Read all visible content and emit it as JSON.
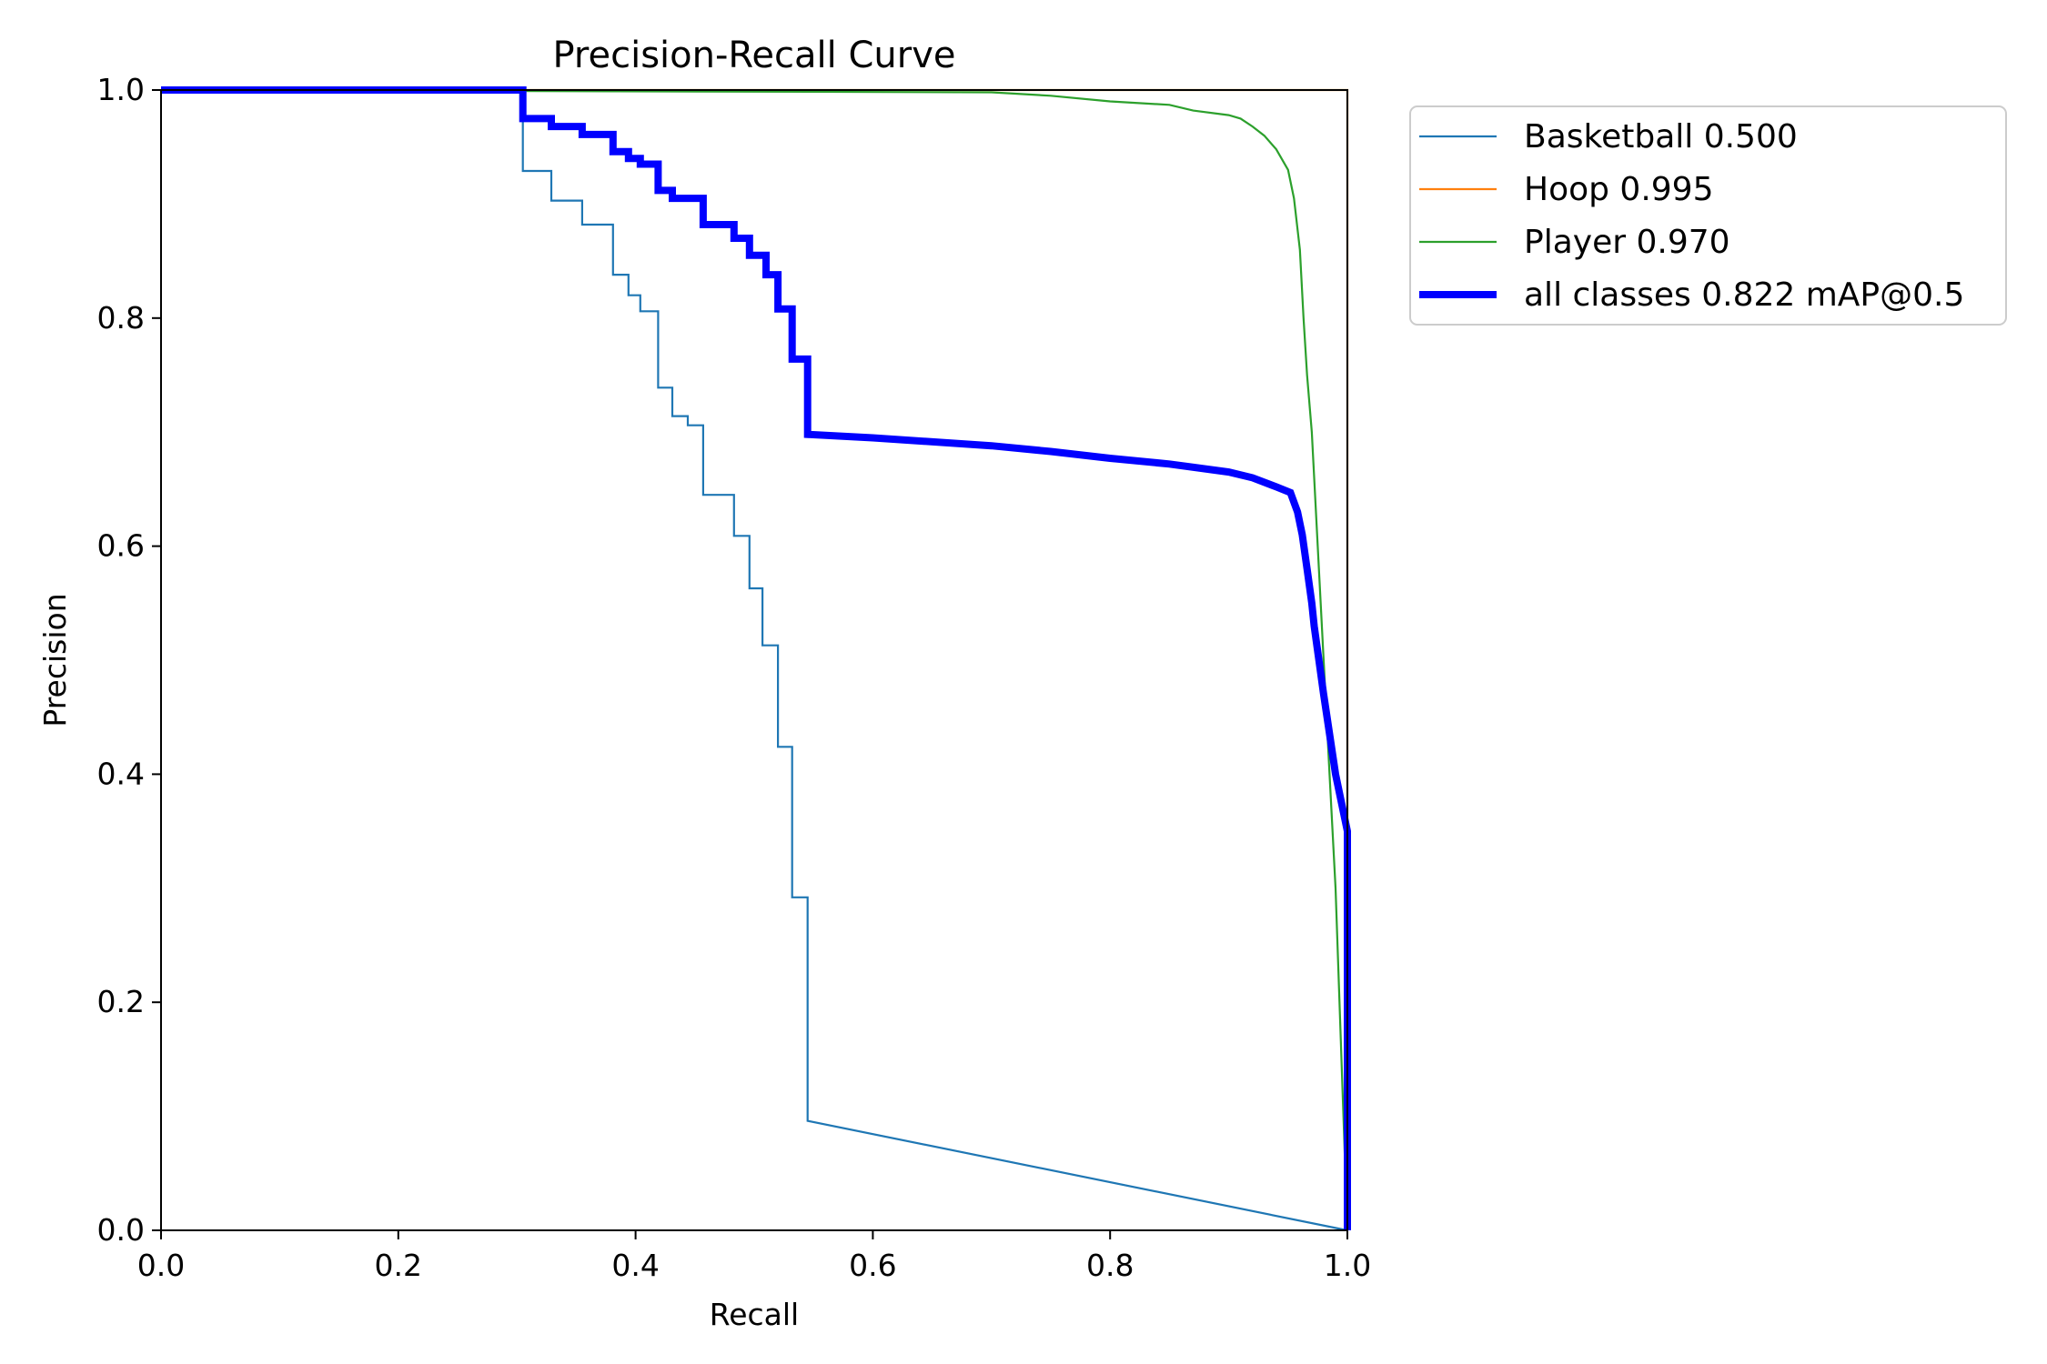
{
  "chart_data": {
    "type": "line",
    "title": "Precision-Recall Curve",
    "xlabel": "Recall",
    "ylabel": "Precision",
    "xlim": [
      0,
      1
    ],
    "ylim": [
      0,
      1
    ],
    "xticks": [
      "0.0",
      "0.2",
      "0.4",
      "0.6",
      "0.8",
      "1.0"
    ],
    "yticks": [
      "0.0",
      "0.2",
      "0.4",
      "0.6",
      "0.8",
      "1.0"
    ],
    "grid": false,
    "legend_position": "outside upper right",
    "series": [
      {
        "name": "Basketball 0.500",
        "color": "#1f77b4",
        "width": "thin",
        "x": [
          0.0,
          0.305,
          0.305,
          0.329,
          0.329,
          0.355,
          0.355,
          0.381,
          0.381,
          0.394,
          0.394,
          0.404,
          0.404,
          0.419,
          0.419,
          0.431,
          0.431,
          0.444,
          0.444,
          0.457,
          0.457,
          0.483,
          0.483,
          0.496,
          0.496,
          0.507,
          0.507,
          0.52,
          0.52,
          0.532,
          0.532,
          0.545,
          0.545,
          1.0
        ],
        "y": [
          1.0,
          1.0,
          0.929,
          0.929,
          0.903,
          0.903,
          0.882,
          0.882,
          0.838,
          0.838,
          0.82,
          0.82,
          0.806,
          0.806,
          0.739,
          0.739,
          0.714,
          0.714,
          0.706,
          0.706,
          0.645,
          0.645,
          0.609,
          0.609,
          0.563,
          0.563,
          0.513,
          0.513,
          0.424,
          0.424,
          0.292,
          0.292,
          0.096,
          0.0
        ]
      },
      {
        "name": "Hoop 0.995",
        "color": "#ff7f0e",
        "width": "thin",
        "x": [
          0.0,
          0.999,
          1.0,
          1.0
        ],
        "y": [
          1.0,
          1.0,
          1.0,
          0.0
        ]
      },
      {
        "name": "Player 0.970",
        "color": "#2ca02c",
        "width": "thin",
        "x": [
          0.0,
          0.7,
          0.75,
          0.8,
          0.85,
          0.87,
          0.9,
          0.91,
          0.92,
          0.93,
          0.94,
          0.95,
          0.955,
          0.96,
          0.963,
          0.966,
          0.97,
          0.975,
          0.98,
          0.985,
          0.99,
          1.0
        ],
        "y": [
          1.0,
          0.998,
          0.995,
          0.99,
          0.987,
          0.982,
          0.978,
          0.975,
          0.968,
          0.96,
          0.948,
          0.93,
          0.905,
          0.86,
          0.8,
          0.75,
          0.7,
          0.6,
          0.5,
          0.4,
          0.3,
          0.0
        ]
      },
      {
        "name": "all classes 0.822 mAP@0.5",
        "color": "#0000ff",
        "width": "thick",
        "x": [
          0.0,
          0.305,
          0.305,
          0.329,
          0.329,
          0.355,
          0.355,
          0.381,
          0.381,
          0.394,
          0.394,
          0.404,
          0.404,
          0.419,
          0.419,
          0.431,
          0.431,
          0.457,
          0.457,
          0.483,
          0.483,
          0.496,
          0.496,
          0.51,
          0.51,
          0.52,
          0.52,
          0.532,
          0.532,
          0.545,
          0.545,
          0.6,
          0.7,
          0.75,
          0.8,
          0.85,
          0.9,
          0.92,
          0.94,
          0.952,
          0.958,
          0.962,
          0.966,
          0.97,
          0.972,
          0.976,
          0.98,
          0.99,
          1.0,
          1.0
        ],
        "y": [
          1.0,
          1.0,
          0.975,
          0.975,
          0.968,
          0.968,
          0.961,
          0.961,
          0.946,
          0.946,
          0.94,
          0.94,
          0.935,
          0.935,
          0.912,
          0.912,
          0.905,
          0.905,
          0.882,
          0.882,
          0.87,
          0.87,
          0.855,
          0.855,
          0.838,
          0.838,
          0.808,
          0.808,
          0.764,
          0.764,
          0.698,
          0.695,
          0.688,
          0.683,
          0.677,
          0.672,
          0.665,
          0.66,
          0.652,
          0.647,
          0.63,
          0.61,
          0.58,
          0.55,
          0.53,
          0.5,
          0.47,
          0.4,
          0.35,
          0.0
        ]
      }
    ]
  }
}
